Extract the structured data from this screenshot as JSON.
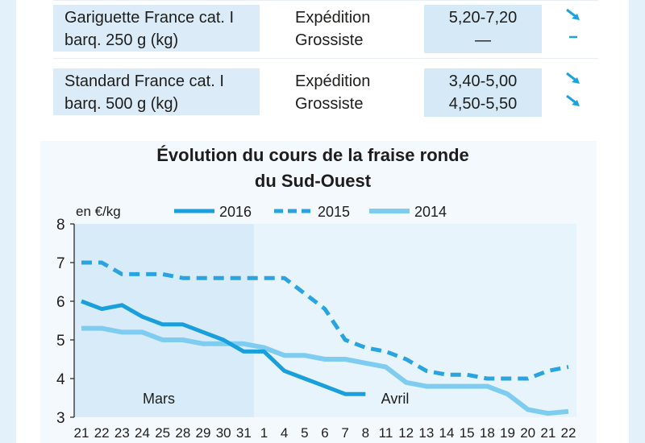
{
  "table": {
    "rows": [
      {
        "product_line1": "Gariguette France cat. I",
        "product_line2": "barq. 250 g (kg)",
        "stages": [
          "Expédition",
          "Grossiste"
        ],
        "prices": [
          "5,20-7,20",
          "—"
        ],
        "trends": [
          "down-right-arrow-icon",
          "dash-icon"
        ]
      },
      {
        "product_line1": "Standard France cat. I",
        "product_line2": "barq. 500 g (kg)",
        "stages": [
          "Expédition",
          "Grossiste"
        ],
        "prices": [
          "3,40-5,00",
          "4,50-5,50"
        ],
        "trends": [
          "down-right-arrow-icon",
          "down-right-arrow-icon"
        ]
      }
    ]
  },
  "chart_data": {
    "type": "line",
    "title_line1": "Évolution du cours de la fraise ronde",
    "title_line2": "du Sud-Ouest",
    "ylabel": "en €/kg",
    "ylim": [
      3,
      8
    ],
    "yticks": [
      "3",
      "4",
      "5",
      "6",
      "7",
      "8"
    ],
    "categories": [
      "21",
      "22",
      "23",
      "24",
      "25",
      "28",
      "29",
      "30",
      "31",
      "1",
      "4",
      "5",
      "6",
      "7",
      "8",
      "11",
      "12",
      "13",
      "14",
      "15",
      "18",
      "19",
      "20",
      "21",
      "22"
    ],
    "months": [
      {
        "label": "Mars",
        "start": 0,
        "end": 8,
        "shaded": true
      },
      {
        "label": "Avril",
        "start": 9,
        "end": 24,
        "shaded": false
      }
    ],
    "colors": {
      "2016": "#1a9fdd",
      "2015": "#2aa4e0",
      "2014": "#7ecdf0",
      "text": "#1d1d1b",
      "shade": "#d8ebf8",
      "plot": "#e8f4fc"
    },
    "legend_position": "top",
    "series": [
      {
        "name": "2016",
        "style": "solid",
        "values": [
          6.0,
          5.8,
          5.9,
          5.6,
          5.4,
          5.4,
          5.2,
          5.0,
          4.7,
          4.7,
          4.2,
          4.0,
          3.8,
          3.6,
          3.6,
          null,
          null,
          null,
          null,
          null,
          null,
          null,
          null,
          null,
          null
        ]
      },
      {
        "name": "2015",
        "style": "dashed",
        "values": [
          7.0,
          7.0,
          6.7,
          6.7,
          6.7,
          6.6,
          6.6,
          6.6,
          6.6,
          6.6,
          6.6,
          6.2,
          5.8,
          5.0,
          4.8,
          4.7,
          4.5,
          4.2,
          4.1,
          4.1,
          4.0,
          4.0,
          4.0,
          4.2,
          4.3
        ]
      },
      {
        "name": "2014",
        "style": "solid",
        "values": [
          5.3,
          5.3,
          5.2,
          5.2,
          5.0,
          5.0,
          4.9,
          4.9,
          4.9,
          4.8,
          4.6,
          4.6,
          4.5,
          4.5,
          4.4,
          4.3,
          3.9,
          3.8,
          3.8,
          3.8,
          3.8,
          3.6,
          3.2,
          3.1,
          3.15
        ]
      }
    ]
  }
}
